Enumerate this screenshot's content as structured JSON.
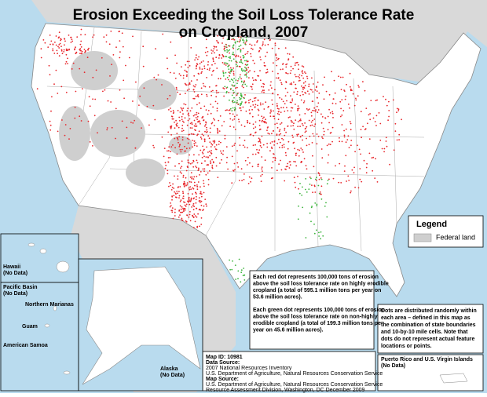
{
  "title": [
    "Erosion Exceeding the Soil Loss Tolerance Rate",
    "on Cropland, 2007"
  ],
  "legend": {
    "title": "Legend",
    "item": "Federal land"
  },
  "red_note": [
    "Each red dot represents 100,000 tons of erosion",
    "above the soil loss tolerance rate on highly erodible",
    "cropland (a total of 595.1 million tons per year on",
    "53.6 million acres)."
  ],
  "green_note": [
    "Each green dot represents 100,000 tons of erosion",
    "above the soil loss tolerance rate on non-highly",
    "erodible cropland (a total of 199.3 million tons per",
    "year on 45.6 million acres)."
  ],
  "dots_note": [
    "Dots are distributed randomly within",
    "each area – defined in this map as",
    "the combination of state boundaries",
    "and 10-by-10 mile cells.  Note that",
    "dots do not represent actual feature",
    "locations or points."
  ],
  "source": {
    "map_id": "Map ID:  10981",
    "data_source_label": "Data Source:",
    "data_source": [
      "2007 National Resources Inventory",
      "U.S. Department of Agriculture, Natural Resources Conservation Service"
    ],
    "map_source_label": "Map Source:",
    "map_source": [
      "U.S. Department of Agriculture, Natural Resources Conservation Service",
      "Resource Assessment Division, Washington, DC    December 2009"
    ]
  },
  "insets": {
    "hawaii": [
      "Hawaii",
      "(No Data)"
    ],
    "pacific": [
      "Pacific Basin",
      "(No Data)"
    ],
    "marianas": "Northern Marianas",
    "guam": "Guam",
    "samoa": "American Samoa",
    "alaska": [
      "Alaska",
      "(No Data)"
    ],
    "puerto_rico": [
      "Puerto Rico and U.S. Virgin Islands",
      "(No Data)"
    ]
  }
}
